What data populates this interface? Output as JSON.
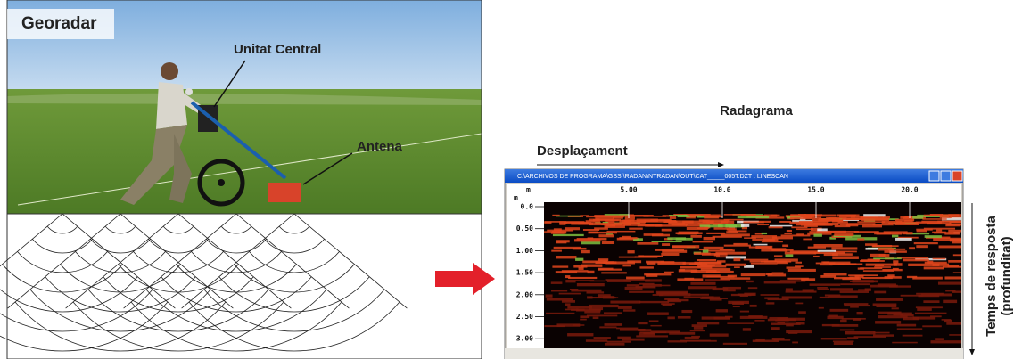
{
  "labels": {
    "georadar": "Georadar",
    "central_unit": "Unitat Central",
    "antenna": "Antena",
    "radargram": "Radagrama",
    "displacement": "Desplaçament",
    "response_time": "Temps de resposta",
    "depth": "(profunditat)"
  },
  "window": {
    "title": "C:\\ARCHIVOS DE PROGRAMA\\GSSI\\RADAN\\NTRADAN\\OUT\\CAT_____005T.DZT : LINESCAN",
    "x_unit": "m",
    "x_ticks": [
      "5.00",
      "10.0",
      "15.0",
      "20.0"
    ],
    "y_unit": "m",
    "y_ticks": [
      "0.0",
      "0.50",
      "1.00",
      "1.50",
      "2.00",
      "2.50",
      "3.00"
    ]
  }
}
